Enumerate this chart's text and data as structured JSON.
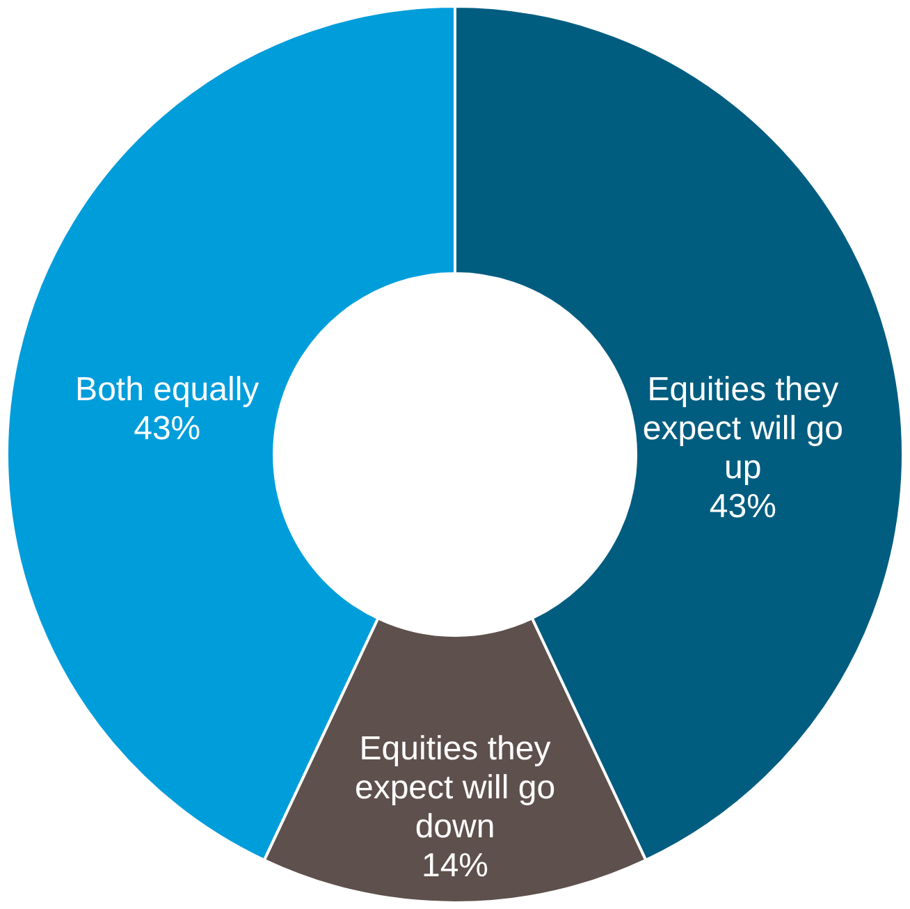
{
  "chart_data": {
    "type": "donut",
    "categories": [
      "Equities they expect will go up",
      "Equities they expect will go down",
      "Both equally"
    ],
    "values": [
      43,
      14,
      43
    ],
    "colors": [
      "#005d80",
      "#5e504c",
      "#009ddb"
    ],
    "value_labels": [
      "43%",
      "14%",
      "43%"
    ]
  }
}
